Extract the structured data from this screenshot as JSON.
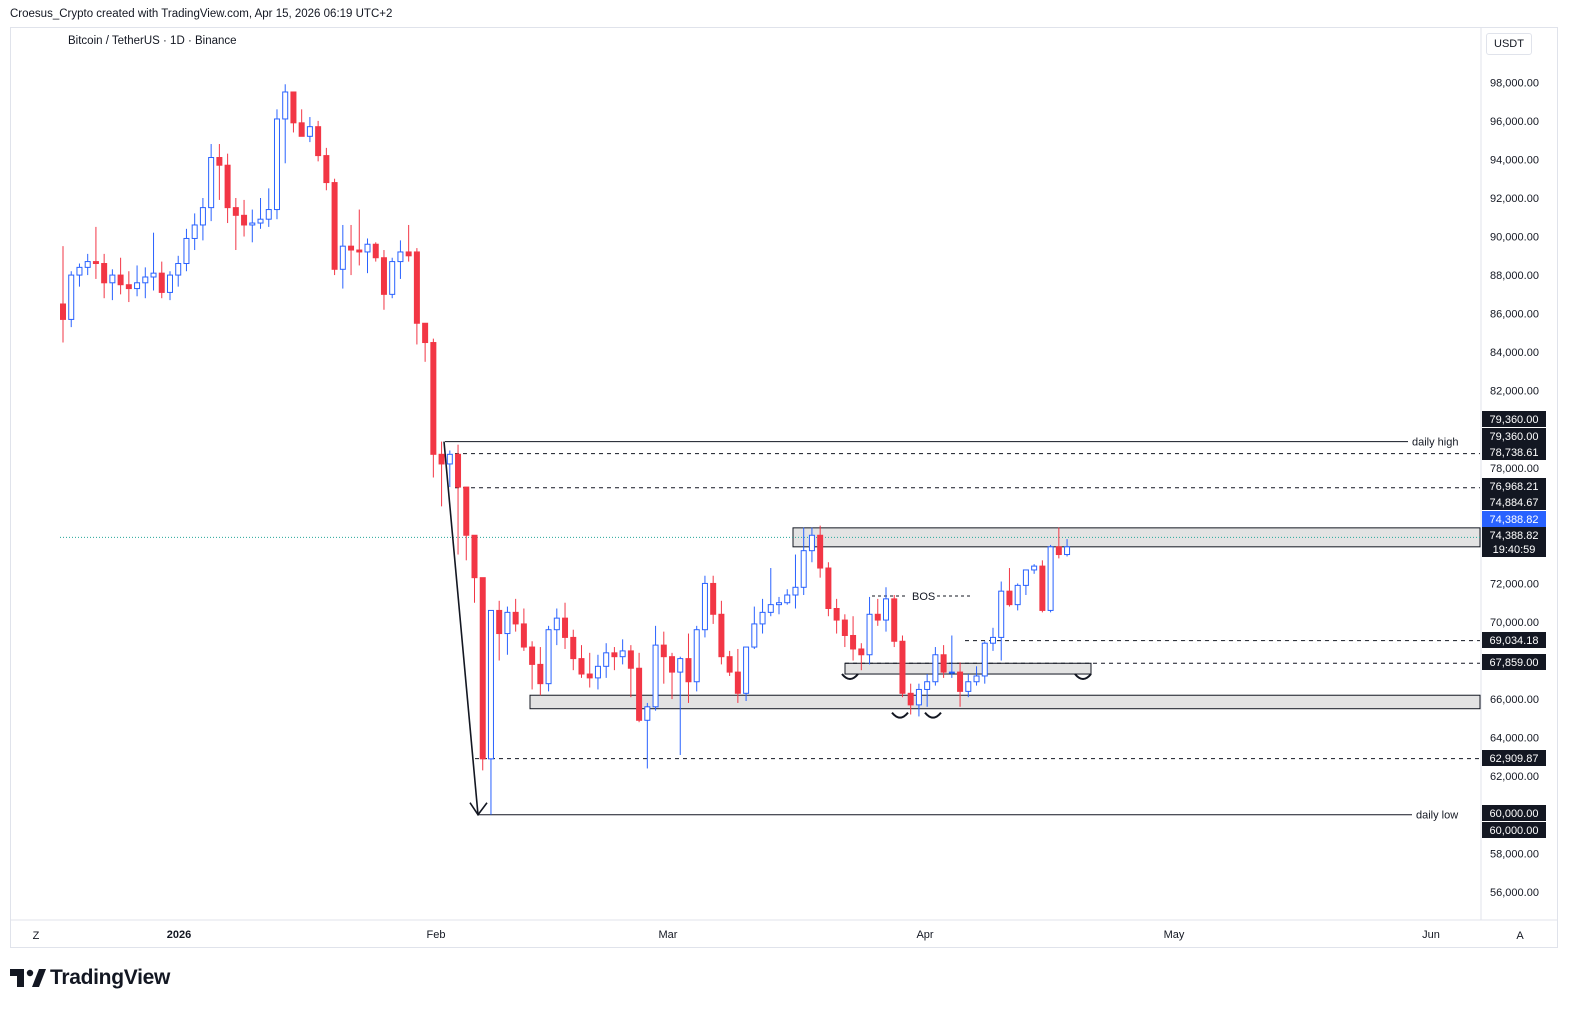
{
  "header": {
    "credit": "Croesus_Crypto created with TradingView.com, Apr 15, 2026 06:19 UTC+2"
  },
  "symbol": {
    "title": "Bitcoin / TetherUS · 1D · Binance"
  },
  "currency": "USDT",
  "footer": {
    "brand": "TradingView",
    "logo_icon": "tradingview-logo-icon"
  },
  "corners": {
    "left": "Z",
    "right": "A"
  },
  "colors": {
    "up": "#2962ff",
    "down": "#f23645",
    "current_price_line": "#26a69a",
    "axis_tag_dark": "#131722",
    "axis_tag_current": "#2962ff"
  },
  "chart_data": {
    "type": "candlestick",
    "title": "Bitcoin / TetherUS · 1D · Binance",
    "x_tick_labels": [
      "2026",
      "Feb",
      "Mar",
      "Apr",
      "May",
      "Jun"
    ],
    "y_tick_labels": [
      "98,000.00",
      "96,000.00",
      "94,000.00",
      "92,000.00",
      "90,000.00",
      "88,000.00",
      "86,000.00",
      "84,000.00",
      "82,000.00",
      "78,000.00",
      "72,000.00",
      "70,000.00",
      "66,000.00",
      "64,000.00",
      "62,000.00",
      "58,000.00",
      "56,000.00"
    ],
    "ylim": [
      55000,
      99500
    ],
    "candles_ohlc": [
      [
        86500,
        89500,
        84500,
        85700
      ],
      [
        85700,
        88200,
        85300,
        88000
      ],
      [
        88000,
        88600,
        87400,
        88400
      ],
      [
        88400,
        89100,
        88000,
        88700
      ],
      [
        88700,
        90500,
        87800,
        88600
      ],
      [
        88600,
        89100,
        86800,
        87600
      ],
      [
        87600,
        88300,
        86700,
        88000
      ],
      [
        88000,
        88900,
        87000,
        87500
      ],
      [
        87500,
        88200,
        86600,
        87300
      ],
      [
        87300,
        88500,
        86900,
        87600
      ],
      [
        87600,
        88400,
        86800,
        87900
      ],
      [
        87900,
        90200,
        87200,
        88100
      ],
      [
        88100,
        88700,
        86800,
        87100
      ],
      [
        87100,
        88200,
        86700,
        88000
      ],
      [
        88000,
        89000,
        87400,
        88600
      ],
      [
        88600,
        90400,
        88200,
        89900
      ],
      [
        89900,
        91200,
        89300,
        90600
      ],
      [
        90600,
        92000,
        89800,
        91500
      ],
      [
        91500,
        94800,
        90800,
        94100
      ],
      [
        94100,
        94800,
        91900,
        93700
      ],
      [
        93700,
        94300,
        90700,
        91500
      ],
      [
        91500,
        92000,
        89300,
        91100
      ],
      [
        91100,
        91900,
        90000,
        90600
      ],
      [
        90600,
        91400,
        89700,
        90700
      ],
      [
        90700,
        92000,
        90400,
        90900
      ],
      [
        90900,
        92500,
        90500,
        91400
      ],
      [
        91400,
        96600,
        90900,
        96100
      ],
      [
        96100,
        97900,
        93800,
        97500
      ],
      [
        97500,
        97200,
        95400,
        95900
      ],
      [
        95900,
        96600,
        95200,
        95200
      ],
      [
        95200,
        96200,
        94900,
        95700
      ],
      [
        95700,
        96000,
        93900,
        94200
      ],
      [
        94200,
        94600,
        92400,
        92800
      ],
      [
        92800,
        93000,
        88000,
        88300
      ],
      [
        88300,
        90600,
        87300,
        89500
      ],
      [
        89500,
        90600,
        88000,
        89300
      ],
      [
        89300,
        91400,
        88500,
        89200
      ],
      [
        89200,
        89900,
        88100,
        89600
      ],
      [
        89600,
        89700,
        88700,
        88900
      ],
      [
        88900,
        89300,
        86200,
        87000
      ],
      [
        87000,
        88900,
        86800,
        88700
      ],
      [
        88700,
        89800,
        87800,
        89200
      ],
      [
        89200,
        90600,
        88700,
        89000
      ],
      [
        89200,
        89400,
        84400,
        85500
      ],
      [
        85500,
        84800,
        83500,
        84500
      ],
      [
        84500,
        84700,
        77500,
        78700
      ],
      [
        78700,
        79360,
        76000,
        78200
      ],
      [
        78200,
        78900,
        77000,
        78700
      ],
      [
        78700,
        79200,
        73500,
        77000
      ],
      [
        77000,
        76500,
        73200,
        74500
      ],
      [
        74500,
        74300,
        71000,
        72300
      ],
      [
        72300,
        71500,
        62300,
        62900
      ],
      [
        62900,
        70600,
        60000,
        70600
      ],
      [
        70600,
        71100,
        68000,
        69400
      ],
      [
        69400,
        70800,
        68300,
        70500
      ],
      [
        70500,
        71200,
        69500,
        69900
      ],
      [
        69900,
        70700,
        68500,
        68700
      ],
      [
        68700,
        69000,
        66500,
        67800
      ],
      [
        67800,
        68700,
        66200,
        66800
      ],
      [
        66800,
        69800,
        66400,
        69600
      ],
      [
        69600,
        70700,
        68800,
        70200
      ],
      [
        70200,
        71000,
        68600,
        69200
      ],
      [
        69200,
        69600,
        67500,
        68100
      ],
      [
        68100,
        68800,
        67100,
        67300
      ],
      [
        67300,
        68400,
        66600,
        67100
      ],
      [
        67100,
        68300,
        66500,
        67700
      ],
      [
        67700,
        68900,
        67100,
        68400
      ],
      [
        68400,
        68700,
        67500,
        68200
      ],
      [
        68200,
        69100,
        67800,
        68500
      ],
      [
        68500,
        68800,
        66100,
        67600
      ],
      [
        67600,
        68400,
        64800,
        64900
      ],
      [
        64900,
        65800,
        62400,
        65600
      ],
      [
        65600,
        69800,
        65400,
        68800
      ],
      [
        68800,
        69500,
        66800,
        68200
      ],
      [
        68200,
        68400,
        66000,
        67400
      ],
      [
        67400,
        68200,
        63100,
        68100
      ],
      [
        68100,
        69400,
        65800,
        66900
      ],
      [
        66900,
        69800,
        66400,
        69600
      ],
      [
        69600,
        72400,
        69200,
        72000
      ],
      [
        72000,
        72400,
        69900,
        70400
      ],
      [
        70400,
        71100,
        67800,
        68200
      ],
      [
        68200,
        68500,
        67200,
        67400
      ],
      [
        67400,
        68600,
        65800,
        66300
      ],
      [
        66300,
        68500,
        65900,
        68700
      ],
      [
        68700,
        70800,
        68600,
        69900
      ],
      [
        69900,
        71200,
        69400,
        70500
      ],
      [
        70500,
        72800,
        70300,
        70900
      ],
      [
        70900,
        71300,
        70400,
        71000
      ],
      [
        71000,
        71700,
        70900,
        71400
      ],
      [
        71400,
        73500,
        70700,
        71800
      ],
      [
        71800,
        74900,
        71400,
        73700
      ],
      [
        73700,
        74900,
        73100,
        74500
      ],
      [
        74500,
        75000,
        72300,
        72800
      ],
      [
        72800,
        73100,
        70300,
        70700
      ],
      [
        70700,
        71200,
        69400,
        70100
      ],
      [
        70100,
        70400,
        68700,
        69300
      ],
      [
        69300,
        70300,
        68000,
        68600
      ],
      [
        68600,
        68900,
        67500,
        68300
      ],
      [
        68300,
        71300,
        67800,
        70400
      ],
      [
        70400,
        71200,
        69800,
        70100
      ],
      [
        70100,
        71800,
        69500,
        71200
      ],
      [
        71200,
        71400,
        68700,
        69000
      ],
      [
        69000,
        69300,
        66100,
        66300
      ],
      [
        66300,
        66800,
        65200,
        65700
      ],
      [
        65700,
        66800,
        65100,
        66500
      ],
      [
        66500,
        67300,
        65600,
        66900
      ],
      [
        66900,
        68700,
        66700,
        68300
      ],
      [
        68300,
        68800,
        67100,
        67400
      ],
      [
        67400,
        69300,
        67100,
        67400
      ],
      [
        67400,
        67900,
        65600,
        66400
      ],
      [
        66400,
        67300,
        66100,
        66900
      ],
      [
        66900,
        67700,
        66700,
        67200
      ],
      [
        67200,
        69000,
        66800,
        68900
      ],
      [
        68900,
        69700,
        68500,
        69200
      ],
      [
        69200,
        72100,
        68000,
        71600
      ],
      [
        71600,
        72800,
        70800,
        70900
      ],
      [
        70900,
        72000,
        70600,
        71900
      ],
      [
        71900,
        72700,
        71400,
        72700
      ],
      [
        72700,
        73000,
        72500,
        72900
      ],
      [
        72900,
        73200,
        70500,
        70600
      ],
      [
        70600,
        74000,
        70500,
        73900
      ],
      [
        73900,
        74900,
        73300,
        73500
      ],
      [
        73500,
        74300,
        73400,
        73900
      ]
    ],
    "levels": [
      {
        "price": 79360.0,
        "label": "daily high"
      },
      {
        "price": 78738.61,
        "label": ""
      },
      {
        "price": 76968.21,
        "label": ""
      },
      {
        "price": 74884.67,
        "label": ""
      },
      {
        "price": 74388.82,
        "label": ""
      },
      {
        "price": 69034.18,
        "label": ""
      },
      {
        "price": 67859.0,
        "label": ""
      },
      {
        "price": 62909.87,
        "label": ""
      },
      {
        "price": 60000.0,
        "label": "daily low"
      }
    ],
    "zones": [
      {
        "from": 74884.67,
        "to": 73900
      },
      {
        "from": 67859.0,
        "to": 67300
      },
      {
        "from": 66200,
        "to": 65500
      }
    ],
    "annotations": [
      "BOS",
      "daily high",
      "daily low"
    ],
    "price_tags": [
      "79,360.00",
      "79,360.00",
      "78,738.61",
      "76,968.21",
      "74,884.67",
      "74,388.82",
      "74,388.82",
      "19:40:59",
      "69,034.18",
      "67,859.00",
      "62,909.87",
      "60,000.00",
      "60,000.00"
    ],
    "current_price": 74388.82,
    "countdown": "19:40:59"
  }
}
